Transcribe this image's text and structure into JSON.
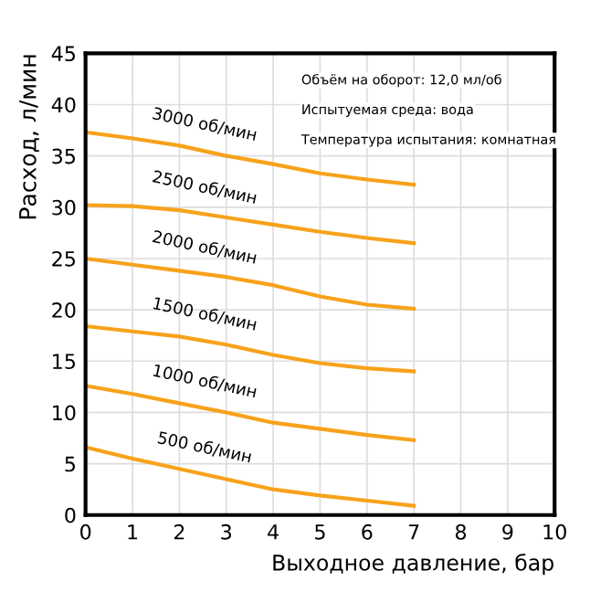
{
  "chart_data": {
    "type": "line",
    "xlabel": "Выходное давление, бар",
    "ylabel": "Расход, л/мин",
    "x": [
      0,
      1,
      2,
      3,
      4,
      5,
      6,
      7
    ],
    "series": [
      {
        "name": "3000 об/мин",
        "color": "#f7a21b",
        "values": [
          37.3,
          36.7,
          36.0,
          35.0,
          34.2,
          33.3,
          32.7,
          32.2
        ]
      },
      {
        "name": "2500 об/мин",
        "color": "#f7a21b",
        "values": [
          30.2,
          30.1,
          29.7,
          29.0,
          28.3,
          27.6,
          27.0,
          26.5
        ]
      },
      {
        "name": "2000 об/мин",
        "color": "#f7a21b",
        "values": [
          25.0,
          24.4,
          23.8,
          23.2,
          22.4,
          21.3,
          20.5,
          20.1
        ]
      },
      {
        "name": "1500 об/мин",
        "color": "#f7a21b",
        "values": [
          18.4,
          17.9,
          17.4,
          16.6,
          15.6,
          14.8,
          14.3,
          14.0
        ]
      },
      {
        "name": "1000 об/мин",
        "color": "#f7a21b",
        "values": [
          12.6,
          11.8,
          10.9,
          10.0,
          9.0,
          8.4,
          7.8,
          7.3
        ]
      },
      {
        "name": "500 об/мин",
        "color": "#f7a21b",
        "values": [
          6.6,
          5.5,
          4.5,
          3.5,
          2.5,
          1.9,
          1.4,
          0.9
        ]
      }
    ],
    "annotations": [
      "Объём на оборот: 12,0 мл/об",
      "Испытуемая среда: вода",
      "Температура испытания: комнатная"
    ],
    "xlim": [
      0,
      10
    ],
    "ylim": [
      0,
      45
    ],
    "xticks": [
      0,
      1,
      2,
      3,
      4,
      5,
      6,
      7,
      8,
      9,
      10
    ],
    "yticks": [
      0,
      5,
      10,
      15,
      20,
      25,
      30,
      35,
      40,
      45
    ],
    "grid": true,
    "marker": "none",
    "line_style": "solid"
  }
}
